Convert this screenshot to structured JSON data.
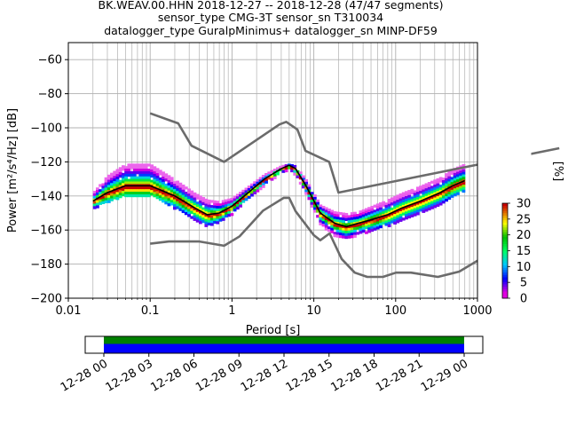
{
  "header": {
    "line1": "BK.WEAV.00.HHN   2018-12-27 -- 2018-12-28  (47/47 segments)",
    "line2": "sensor_type CMG-3T sensor_sn T310034",
    "line3": "datalogger_type GuralpMinimus+ datalogger_sn MINP-DF59"
  },
  "colors": {
    "noise_model": "#6b6b6b",
    "mean_curve": "#000000",
    "grid": "#b0b0b0",
    "coverage_fill": "#0000ff",
    "coverage_top": "#008000"
  },
  "chart_data": [
    {
      "type": "heatmap",
      "title": "",
      "xlabel": "Period [s]",
      "ylabel": "Power [m²/s⁴/Hz] [dB]",
      "x_scale": "log",
      "xlim": [
        0.01,
        1000
      ],
      "ylim": [
        -200,
        -50
      ],
      "x_ticks": [
        "0.01",
        "0.1",
        "1",
        "10",
        "100",
        "1000"
      ],
      "y_ticks": [
        "−200",
        "−180",
        "−160",
        "−140",
        "−120",
        "−100",
        "−80",
        "−60"
      ],
      "grid": true,
      "colorbar": {
        "label": "[%]",
        "min": 0,
        "max": 30,
        "ticks": [
          "0",
          "5",
          "10",
          "15",
          "20",
          "25",
          "30"
        ]
      },
      "series": [
        {
          "kind": "noise-model-high",
          "x": [
            0.1,
            0.22,
            0.32,
            0.8,
            3.8,
            4.6,
            6.3,
            7.9,
            15.4,
            20,
            354.8,
            10000
          ],
          "y": [
            -91.5,
            -97.4,
            -110.5,
            -120,
            -98,
            -96.5,
            -101,
            -113.5,
            -120,
            -138,
            -126,
            -112
          ]
        },
        {
          "kind": "noise-model-low",
          "x": [
            0.1,
            0.17,
            0.4,
            0.8,
            1.24,
            2.4,
            4.3,
            5,
            6,
            10,
            12,
            15.6,
            21.9,
            31.6,
            45,
            70,
            101,
            154,
            328,
            600,
            1000
          ],
          "y": [
            -168,
            -166.7,
            -166.7,
            -169.2,
            -163.7,
            -148.6,
            -141.1,
            -141.1,
            -149,
            -163,
            -166,
            -162,
            -177,
            -185,
            -187.5,
            -187.5,
            -185,
            -185,
            -187.5,
            -184.4,
            -178
          ]
        },
        {
          "kind": "mean",
          "x": [
            0.02,
            0.03,
            0.05,
            0.1,
            0.2,
            0.35,
            0.5,
            0.7,
            1,
            1.5,
            2.5,
            4,
            5,
            6,
            8,
            12,
            18,
            25,
            35,
            50,
            80,
            120,
            200,
            350,
            500,
            700
          ],
          "y": [
            -143,
            -138,
            -134,
            -134,
            -140,
            -147,
            -151,
            -150,
            -146,
            -139,
            -130,
            -124,
            -122,
            -124,
            -134,
            -150,
            -156,
            -158,
            -156,
            -154,
            -151,
            -147,
            -143,
            -138,
            -134,
            -131
          ]
        },
        {
          "kind": "density-band",
          "x": [
            0.02,
            0.03,
            0.05,
            0.1,
            0.2,
            0.35,
            0.5,
            0.7,
            1,
            1.5,
            2.5,
            4,
            5,
            6,
            8,
            12,
            18,
            25,
            35,
            50,
            80,
            120,
            200,
            350,
            500,
            700
          ],
          "low": [
            -147,
            -143,
            -139,
            -139,
            -147,
            -153,
            -157,
            -155,
            -150,
            -142,
            -133,
            -126,
            -124,
            -127,
            -138,
            -156,
            -163,
            -165,
            -162,
            -160,
            -157,
            -153,
            -149,
            -144,
            -140,
            -137
          ],
          "high": [
            -138,
            -128,
            -121,
            -121,
            -130,
            -138,
            -142,
            -143,
            -141,
            -135,
            -127,
            -122,
            -121,
            -122,
            -130,
            -145,
            -149,
            -150,
            -149,
            -146,
            -142,
            -138,
            -134,
            -129,
            -124,
            -121
          ]
        }
      ]
    },
    {
      "type": "bar",
      "title": "",
      "x_ticks": [
        "12-28 00",
        "12-28 03",
        "12-28 06",
        "12-28 09",
        "12-28 12",
        "12-28 15",
        "12-28 18",
        "12-28 21",
        "12-29 00"
      ],
      "coverage": {
        "start_hour": 0,
        "end_hour": 24,
        "fraction": 1.0
      }
    }
  ]
}
